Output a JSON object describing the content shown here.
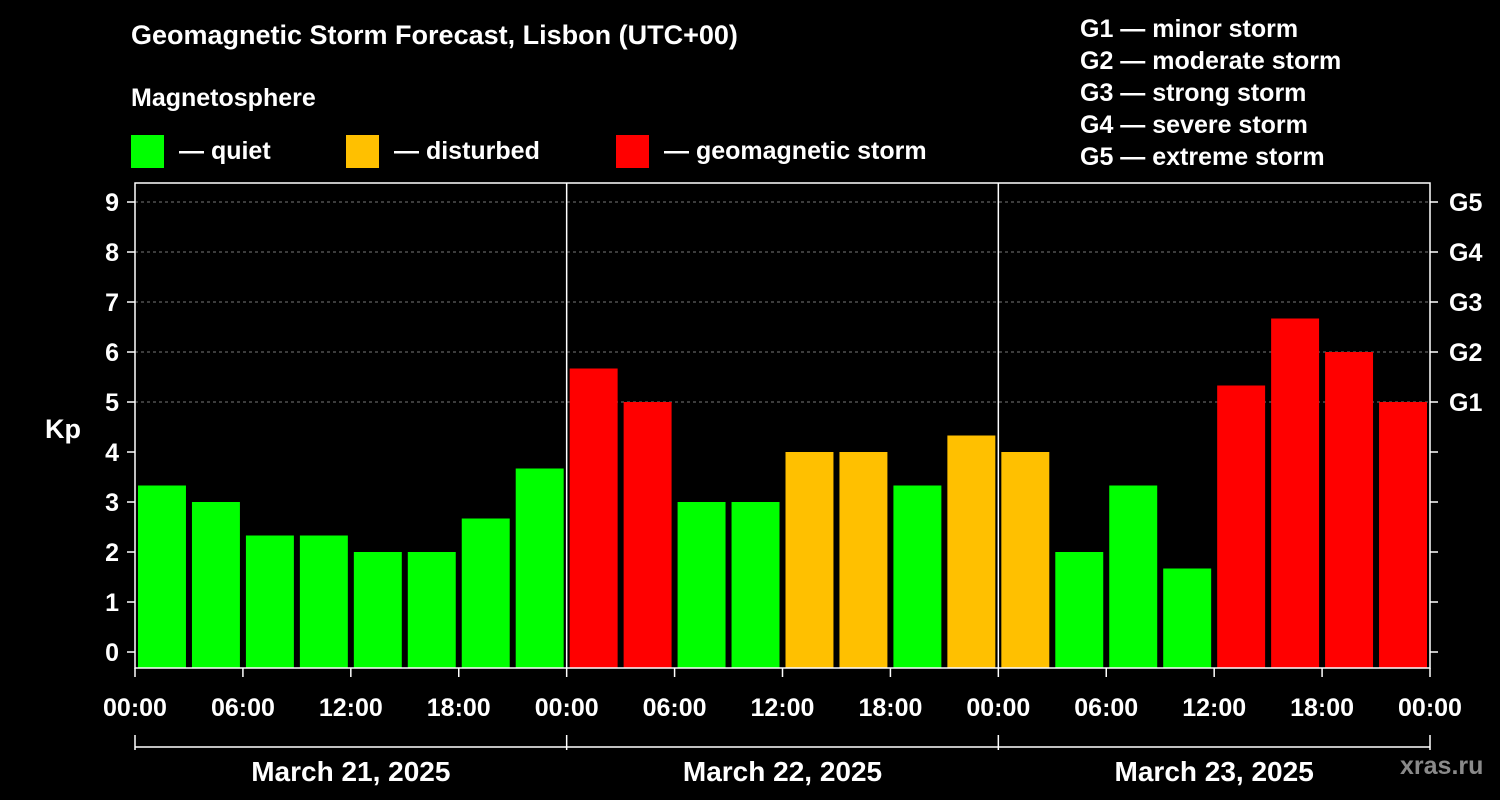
{
  "title": "Geomagnetic Storm Forecast, Lisbon (UTC+00)",
  "subtitle": "Magnetosphere",
  "legend": [
    {
      "label": "— quiet",
      "color": "#00ff00"
    },
    {
      "label": "— disturbed",
      "color": "#ffc000"
    },
    {
      "label": "— geomagnetic storm",
      "color": "#ff0000"
    }
  ],
  "storm_scale": [
    "G1 — minor storm",
    "G2 — moderate storm",
    "G3 — strong storm",
    "G4 — severe storm",
    "G5 — extreme storm"
  ],
  "watermark": "xras.ru",
  "chart_data": {
    "type": "bar",
    "ylabel": "Kp",
    "ylim": [
      0,
      9
    ],
    "yticks": [
      "0",
      "1",
      "2",
      "3",
      "4",
      "5",
      "6",
      "7",
      "8",
      "9"
    ],
    "right_ticks": [
      {
        "value": 5,
        "label": "G1"
      },
      {
        "value": 6,
        "label": "G2"
      },
      {
        "value": 7,
        "label": "G3"
      },
      {
        "value": 8,
        "label": "G4"
      },
      {
        "value": 9,
        "label": "G5"
      }
    ],
    "xtick_labels": [
      "00:00",
      "06:00",
      "12:00",
      "18:00",
      "00:00",
      "06:00",
      "12:00",
      "18:00",
      "00:00",
      "06:00",
      "12:00",
      "18:00",
      "00:00"
    ],
    "days": [
      "March 21, 2025",
      "March 22, 2025",
      "March 23, 2025"
    ],
    "interval_hours": 3,
    "values": [
      3.33,
      3.0,
      2.33,
      2.33,
      2.0,
      2.0,
      2.67,
      3.67,
      5.67,
      5.0,
      3.0,
      3.0,
      4.0,
      4.0,
      3.33,
      4.33,
      4.0,
      2.0,
      3.33,
      1.67,
      5.33,
      6.67,
      6.0,
      5.0
    ],
    "levels": [
      "quiet",
      "quiet",
      "quiet",
      "quiet",
      "quiet",
      "quiet",
      "quiet",
      "quiet",
      "storm",
      "storm",
      "quiet",
      "quiet",
      "disturbed",
      "disturbed",
      "quiet",
      "disturbed",
      "disturbed",
      "quiet",
      "quiet",
      "quiet",
      "storm",
      "storm",
      "storm",
      "storm"
    ],
    "level_colors": {
      "quiet": "#00ff00",
      "disturbed": "#ffc000",
      "storm": "#ff0000"
    }
  }
}
